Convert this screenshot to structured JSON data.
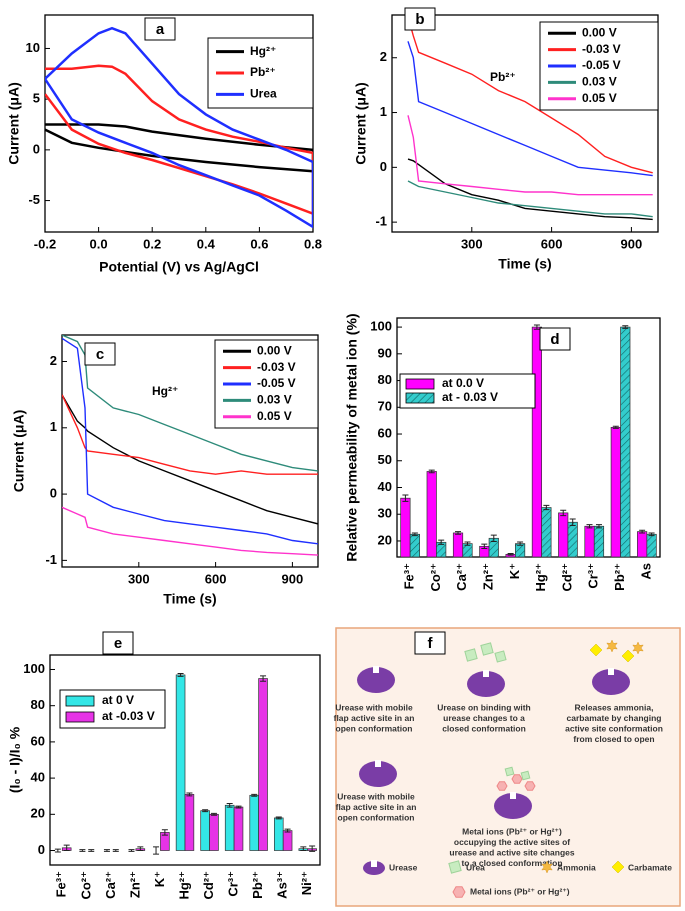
{
  "chart_data": [
    {
      "type": "line",
      "panel_label": "a",
      "xlabel": "Potential (V) vs Ag/AgCl",
      "ylabel": "Current (μA)",
      "xlim": [
        -0.2,
        0.8
      ],
      "ylim": [
        -8.1,
        13.3
      ],
      "xticks": [
        -0.2,
        {
          "value": 0,
          "label": "0.0"
        },
        0.2,
        0.4,
        0.6,
        0.8
      ],
      "yticks": [
        -5,
        0,
        5,
        10
      ],
      "legend": "upper right",
      "series": [
        {
          "name": "Hg²⁺",
          "color": "#000000",
          "x": [
            -0.2,
            0,
            0.1,
            0.2,
            0.4,
            0.6,
            0.8,
            0.8,
            0.6,
            0.4,
            0.2,
            0,
            -0.1,
            -0.2
          ],
          "values": [
            2.5,
            2.5,
            2.3,
            1.8,
            1.1,
            0.5,
            0,
            -2.1,
            -1.7,
            -1.2,
            -0.6,
            0.2,
            0.7,
            2
          ]
        },
        {
          "name": "Pb²⁺",
          "color": "#ff2020",
          "x": [
            -0.2,
            -0.1,
            0,
            0.05,
            0.1,
            0.2,
            0.3,
            0.4,
            0.5,
            0.6,
            0.7,
            0.8,
            0.8,
            0.7,
            0.6,
            0.5,
            0.4,
            0.3,
            0.2,
            0.1,
            0,
            -0.1,
            -0.2
          ],
          "values": [
            8,
            8,
            8.3,
            8.2,
            7.5,
            4.8,
            3,
            2,
            1.3,
            0.8,
            0.2,
            -0.3,
            -6.3,
            -5.3,
            -4.3,
            -3.4,
            -2.6,
            -1.8,
            -1,
            -0.3,
            0.6,
            2,
            5.5
          ]
        },
        {
          "name": "Urea",
          "color": "#1f2fff",
          "x": [
            -0.2,
            -0.1,
            0,
            0.05,
            0.1,
            0.2,
            0.3,
            0.4,
            0.5,
            0.6,
            0.7,
            0.8,
            0.8,
            0.7,
            0.6,
            0.5,
            0.4,
            0.3,
            0.2,
            0.1,
            0,
            -0.1,
            -0.2
          ],
          "values": [
            7,
            9.5,
            11.5,
            12,
            11.5,
            8.5,
            5.5,
            3.5,
            2,
            1,
            0,
            -1.2,
            -7.6,
            -6,
            -4.5,
            -3.5,
            -2.5,
            -1.5,
            -0.3,
            0.7,
            1.7,
            3,
            7
          ]
        }
      ]
    },
    {
      "type": "line",
      "panel_label": "b",
      "annotation": "Pb²⁺",
      "xlabel": "Time (s)",
      "ylabel": "Current (μA)",
      "xlim": [
        0,
        1000
      ],
      "ylim": [
        -1.18,
        2.78
      ],
      "xticks": [
        300,
        600,
        900
      ],
      "yticks": [
        -1,
        0,
        1,
        2
      ],
      "legend": "upper right",
      "x": [
        60,
        80,
        100,
        200,
        300,
        400,
        500,
        600,
        700,
        800,
        900,
        980
      ],
      "series": [
        {
          "name": "0.00 V",
          "color": "#000000",
          "values": [
            0.15,
            0.12,
            0.05,
            -0.3,
            -0.5,
            -0.6,
            -0.75,
            -0.8,
            -0.85,
            -0.9,
            -0.92,
            -0.95
          ]
        },
        {
          "name": "-0.03 V",
          "color": "#ff2020",
          "values": [
            2.75,
            2.4,
            2.1,
            1.9,
            1.7,
            1.4,
            1.2,
            0.9,
            0.6,
            0.2,
            0,
            -0.1
          ]
        },
        {
          "name": "-0.05 V",
          "color": "#1f2fff",
          "values": [
            2.3,
            2.0,
            1.2,
            1.0,
            0.8,
            0.6,
            0.4,
            0.2,
            0,
            -0.05,
            -0.1,
            -0.15
          ]
        },
        {
          "name": "0.03 V",
          "color": "#2e8b7a",
          "values": [
            -0.25,
            -0.3,
            -0.35,
            -0.45,
            -0.55,
            -0.65,
            -0.7,
            -0.75,
            -0.8,
            -0.85,
            -0.85,
            -0.9
          ]
        },
        {
          "name": "0.05 V",
          "color": "#ff33cc",
          "values": [
            0.95,
            0.55,
            -0.25,
            -0.3,
            -0.35,
            -0.4,
            -0.45,
            -0.45,
            -0.5,
            -0.5,
            -0.5,
            -0.5
          ]
        }
      ]
    },
    {
      "type": "line",
      "panel_label": "c",
      "annotation": "Hg²⁺",
      "xlabel": "Time (s)",
      "ylabel": "Current (μA)",
      "xlim": [
        0,
        1000
      ],
      "ylim": [
        -1.1,
        2.4
      ],
      "xticks": [
        300,
        600,
        900
      ],
      "yticks": [
        -1,
        0,
        1,
        2
      ],
      "legend": "upper right",
      "x": [
        0,
        60,
        90,
        100,
        200,
        300,
        400,
        500,
        600,
        700,
        800,
        900,
        1000
      ],
      "series": [
        {
          "name": "0.00 V",
          "color": "#000000",
          "values": [
            1.5,
            1.1,
            1.0,
            0.95,
            0.7,
            0.5,
            0.35,
            0.2,
            0.05,
            -0.1,
            -0.25,
            -0.35,
            -0.45
          ]
        },
        {
          "name": "-0.03 V",
          "color": "#ff2020",
          "values": [
            1.5,
            1.0,
            0.7,
            0.65,
            0.6,
            0.55,
            0.45,
            0.35,
            0.3,
            0.35,
            0.3,
            0.3,
            0.3
          ]
        },
        {
          "name": "-0.05 V",
          "color": "#1f2fff",
          "values": [
            2.35,
            2.2,
            1.3,
            0,
            -0.2,
            -0.3,
            -0.4,
            -0.45,
            -0.5,
            -0.55,
            -0.6,
            -0.7,
            -0.75
          ]
        },
        {
          "name": "0.03 V",
          "color": "#2e8b7a",
          "values": [
            2.4,
            2.3,
            2.1,
            1.6,
            1.3,
            1.2,
            1.05,
            0.9,
            0.75,
            0.6,
            0.5,
            0.4,
            0.35
          ]
        },
        {
          "name": "0.05 V",
          "color": "#ff33cc",
          "values": [
            -0.2,
            -0.3,
            -0.35,
            -0.5,
            -0.6,
            -0.65,
            -0.7,
            -0.75,
            -0.8,
            -0.85,
            -0.88,
            -0.9,
            -0.92
          ]
        }
      ]
    },
    {
      "type": "bar",
      "panel_label": "d",
      "ylabel": "Relative permeability of metal ion (%)",
      "ylim": [
        14,
        103.4
      ],
      "yticks": [
        20,
        30,
        40,
        50,
        60,
        70,
        80,
        90,
        100
      ],
      "legend": "center left",
      "categories": [
        "Fe³⁺",
        "Co²⁺",
        "Ca²⁺",
        "Zn²⁺",
        "K⁺",
        "Hg²⁺",
        "Cd²⁺",
        "Cr³⁺",
        "Pb²⁺",
        "As"
      ],
      "series": [
        {
          "name": "at 0.0 V",
          "color": "#ff00ff",
          "values": [
            36,
            46,
            23,
            18,
            15,
            100,
            30.5,
            25.5,
            62.5,
            23.5
          ],
          "errors": [
            1.2,
            0.5,
            0.5,
            0.8,
            0.3,
            0.8,
            1,
            0.6,
            0.4,
            0.5
          ]
        },
        {
          "name": "at - 0.03 V",
          "color": "#33cccc",
          "hatch": true,
          "values": [
            22.5,
            19.5,
            19,
            21,
            19,
            32.5,
            27,
            25.5,
            100,
            22.5
          ],
          "errors": [
            0.5,
            0.8,
            0.6,
            1.2,
            0.6,
            0.8,
            1.2,
            0.6,
            0.5,
            0.5
          ]
        }
      ]
    },
    {
      "type": "bar",
      "panel_label": "e",
      "ylabel": "(I₀ - I)/I₀ %",
      "ylim": [
        -8,
        108
      ],
      "yticks": [
        0,
        20,
        40,
        60,
        80,
        100
      ],
      "legend": "upper left",
      "categories": [
        "Fe³⁺",
        "Co²⁺",
        "Ca²⁺",
        "Zn²⁺",
        "K⁺",
        "Hg²⁺",
        "Cd²⁺",
        "Cr³⁺",
        "Pb²⁺",
        "As³⁺",
        "Ni²⁺"
      ],
      "series": [
        {
          "name": "at 0 V",
          "color": "#33e6e6",
          "values": [
            0,
            0,
            0,
            0,
            0,
            97,
            22,
            25,
            30.5,
            18,
            1
          ],
          "errors": [
            0.8,
            0.5,
            0.5,
            0.5,
            2,
            0.8,
            0.5,
            1,
            0.5,
            0.5,
            1
          ]
        },
        {
          "name": "at -0.03 V",
          "color": "#e633e6",
          "values": [
            1.5,
            0,
            0,
            1,
            10,
            31,
            20,
            24,
            95,
            11,
            1
          ],
          "errors": [
            1.5,
            0.5,
            0.5,
            1,
            1.5,
            0.8,
            0.5,
            0.5,
            1.5,
            0.8,
            1.5
          ]
        }
      ]
    }
  ],
  "diagram": {
    "panel_label": "f",
    "steps": [
      {
        "lines": [
          "Urease with mobile",
          "flap active site in an",
          "open conformation"
        ]
      },
      {
        "lines": [
          "Urease on binding with",
          "urease changes to a",
          "closed conformation"
        ]
      },
      {
        "lines": [
          "Releases ammonia,",
          "carbamate by changing",
          "active site conformation",
          "from closed to open"
        ]
      },
      {
        "lines": [
          "Urease with mobile",
          "flap active site in an",
          "open conformation"
        ]
      },
      {
        "lines": [
          "Metal ions (Pb²⁺ or Hg²⁺)",
          "occupying the active sites of",
          "urease and active site changes",
          "to a closed conformation"
        ]
      }
    ],
    "legend": [
      "Urease",
      "Urea",
      "Ammonia",
      "Carbamate",
      "Metal ions (Pb²⁺ or Hg²⁺)"
    ]
  }
}
